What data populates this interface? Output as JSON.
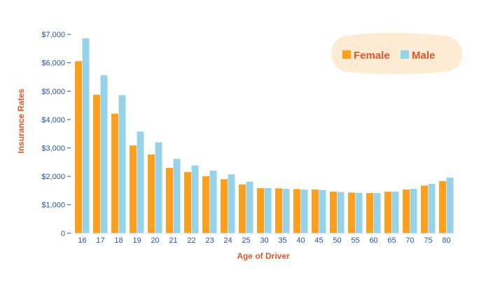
{
  "chart_data": {
    "type": "bar",
    "xlabel": "Age of Driver",
    "ylabel": "Insurance Rates",
    "ylim": [
      0,
      7000
    ],
    "yticks": [
      0,
      1000,
      2000,
      3000,
      4000,
      5000,
      6000,
      7000
    ],
    "ytick_labels": [
      "0",
      "$1,000",
      "$2,000",
      "$3,000",
      "$4,000",
      "$5,000",
      "$6,000",
      "$7,000"
    ],
    "categories": [
      "16",
      "17",
      "18",
      "19",
      "20",
      "21",
      "22",
      "23",
      "24",
      "25",
      "30",
      "35",
      "40",
      "45",
      "50",
      "55",
      "60",
      "65",
      "70",
      "75",
      "80"
    ],
    "series": [
      {
        "name": "Female",
        "color": "#ff9f1c",
        "values": [
          6056,
          4873,
          4207,
          3090,
          2769,
          2301,
          2153,
          2005,
          1898,
          1717,
          1585,
          1576,
          1552,
          1535,
          1461,
          1428,
          1412,
          1461,
          1535,
          1675,
          1831
        ]
      },
      {
        "name": "Male",
        "color": "#97d3e8",
        "values": [
          6861,
          5563,
          4856,
          3574,
          3196,
          2613,
          2383,
          2202,
          2071,
          1808,
          1585,
          1560,
          1535,
          1519,
          1445,
          1420,
          1412,
          1461,
          1560,
          1732,
          1954
        ]
      }
    ],
    "grid": false,
    "legend_position": "top-right",
    "legend_background": "#fdebd3"
  }
}
